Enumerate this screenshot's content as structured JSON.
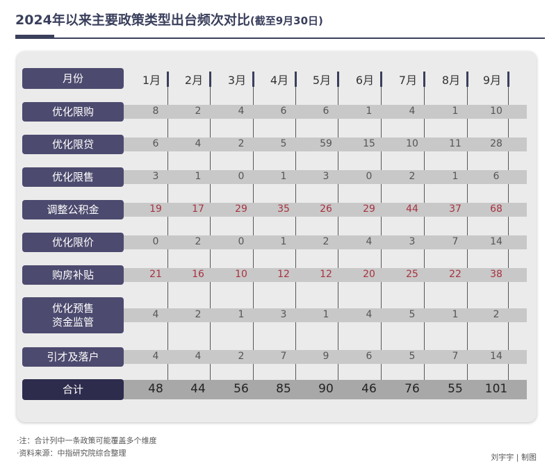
{
  "title": "2024年以来主要政策类型出台频次对比",
  "subtitle": "(截至9月30日)",
  "colors": {
    "label_bg": "#4c4a6e",
    "total_bg": "#2d2c4d",
    "red": "#a83240",
    "normal": "#555555"
  },
  "chart_data": {
    "type": "table",
    "header_label": "月份",
    "columns": [
      "1月",
      "2月",
      "3月",
      "4月",
      "5月",
      "6月",
      "7月",
      "8月",
      "9月"
    ],
    "rows": [
      {
        "label": "优化限购",
        "values": [
          "8",
          "2",
          "4",
          "6",
          "6",
          "1",
          "4",
          "1",
          "10"
        ],
        "highlight": false
      },
      {
        "label": "优化限贷",
        "values": [
          "6",
          "4",
          "2",
          "5",
          "59",
          "15",
          "10",
          "11",
          "28"
        ],
        "highlight": false
      },
      {
        "label": "优化限售",
        "values": [
          "3",
          "1",
          "0",
          "1",
          "3",
          "0",
          "2",
          "1",
          "6"
        ],
        "highlight": false
      },
      {
        "label": "调整公积金",
        "values": [
          "19",
          "17",
          "29",
          "35",
          "26",
          "29",
          "44",
          "37",
          "68"
        ],
        "highlight": true
      },
      {
        "label": "优化限价",
        "values": [
          "0",
          "2",
          "0",
          "1",
          "2",
          "4",
          "3",
          "7",
          "14"
        ],
        "highlight": false
      },
      {
        "label": "购房补贴",
        "values": [
          "21",
          "16",
          "10",
          "12",
          "12",
          "20",
          "25",
          "22",
          "38"
        ],
        "highlight": true
      },
      {
        "label": "优化预售\n资金监管",
        "values": [
          "4",
          "2",
          "1",
          "3",
          "1",
          "4",
          "5",
          "1",
          "2"
        ],
        "highlight": false
      },
      {
        "label": "引才及落户",
        "values": [
          "4",
          "4",
          "2",
          "7",
          "9",
          "6",
          "5",
          "7",
          "14"
        ],
        "highlight": false
      }
    ],
    "total": {
      "label": "合计",
      "values": [
        "48",
        "44",
        "56",
        "85",
        "90",
        "46",
        "76",
        "55",
        "101"
      ]
    }
  },
  "notes": [
    "·注：合计列中一条政策可能覆盖多个维度",
    "·资料来源：中指研究院综合整理"
  ],
  "credit": "刘宇宇 | 制图"
}
